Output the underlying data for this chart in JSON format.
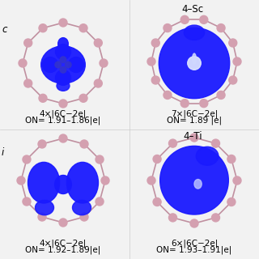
{
  "background_color": "#f0f0f0",
  "panel_bg": "#f0f0f0",
  "title_top_left": "",
  "title_top_right": "4–Sc",
  "title_bottom_left": "",
  "title_bottom_right": "4–Ti",
  "label_top_left_line1": "4×|6C−2e|",
  "label_top_left_line2": "ON= 1.91–1.86|e|",
  "label_top_right_line1": "7×|6C−2e|",
  "label_top_right_line2": "ON= 1.89 |e|",
  "label_bottom_left_line1": "4×|6C−2e|",
  "label_bottom_left_line2": "ON= 1.92–1.89|e|",
  "label_bottom_right_line1": "6×|6C−2e|",
  "label_bottom_right_line2": "ON= 1.93–1.91|e|",
  "blue_color": "#1a1aff",
  "pink_color": "#d4a0b0",
  "white_color": "#ffffff",
  "text_color": "#000000",
  "left_label_tl": "c",
  "left_label_bl": "i"
}
